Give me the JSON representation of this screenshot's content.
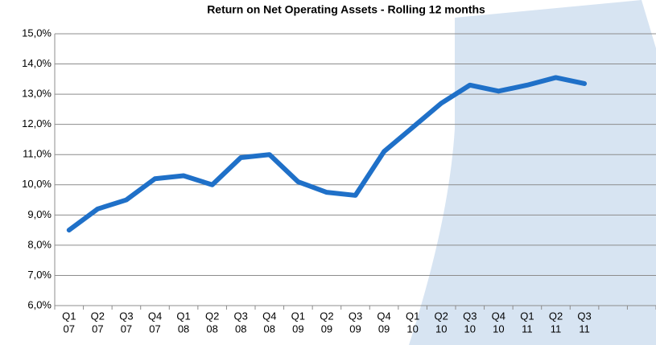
{
  "chart_data": {
    "type": "line",
    "title": "Return on Net Operating Assets - Rolling 12 months",
    "categories": [
      [
        "Q1",
        "07"
      ],
      [
        "Q2",
        "07"
      ],
      [
        "Q3",
        "07"
      ],
      [
        "Q4",
        "07"
      ],
      [
        "Q1",
        "08"
      ],
      [
        "Q2",
        "08"
      ],
      [
        "Q3",
        "08"
      ],
      [
        "Q4",
        "08"
      ],
      [
        "Q1",
        "09"
      ],
      [
        "Q2",
        "09"
      ],
      [
        "Q3",
        "09"
      ],
      [
        "Q4",
        "09"
      ],
      [
        "Q1",
        "10"
      ],
      [
        "Q2",
        "10"
      ],
      [
        "Q3",
        "10"
      ],
      [
        "Q4",
        "10"
      ],
      [
        "Q1",
        "11"
      ],
      [
        "Q2",
        "11"
      ],
      [
        "Q3",
        "11"
      ],
      null,
      null
    ],
    "values": [
      8.5,
      9.2,
      9.5,
      10.2,
      10.3,
      10.0,
      10.9,
      11.0,
      10.1,
      9.75,
      9.65,
      11.1,
      11.9,
      12.7,
      13.3,
      13.1,
      13.3,
      13.55,
      13.35,
      null,
      null
    ],
    "color": "#1f70c8",
    "ylim": [
      6,
      15
    ],
    "yticks": [
      {
        "value": 6,
        "label": "6,0%"
      },
      {
        "value": 7,
        "label": "7,0%"
      },
      {
        "value": 8,
        "label": "8,0%"
      },
      {
        "value": 9,
        "label": "9,0%"
      },
      {
        "value": 10,
        "label": "10,0%"
      },
      {
        "value": 11,
        "label": "11,0%"
      },
      {
        "value": 12,
        "label": "12,0%"
      },
      {
        "value": 13,
        "label": "13,0%"
      },
      {
        "value": 14,
        "label": "14,0%"
      },
      {
        "value": 15,
        "label": "15,0%"
      }
    ],
    "grid": true
  }
}
